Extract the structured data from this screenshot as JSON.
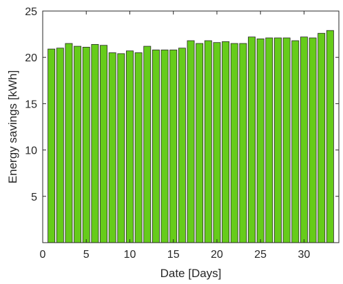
{
  "chart_data": {
    "type": "bar",
    "title": "",
    "xlabel": "Date [Days]",
    "ylabel": "Energy savings [kWh]",
    "xlim": [
      0,
      34
    ],
    "ylim": [
      0,
      25
    ],
    "xticks": [
      0,
      5,
      10,
      15,
      20,
      25,
      30
    ],
    "yticks": [
      5,
      10,
      15,
      20,
      25
    ],
    "grid": false,
    "legend": "none",
    "bar_color": "#66cc1a",
    "edge_color": "#262626",
    "x": [
      1,
      2,
      3,
      4,
      5,
      6,
      7,
      8,
      9,
      10,
      11,
      12,
      13,
      14,
      15,
      16,
      17,
      18,
      19,
      20,
      21,
      22,
      23,
      24,
      25,
      26,
      27,
      28,
      29,
      30,
      31,
      32,
      33
    ],
    "values": [
      20.9,
      21.0,
      21.5,
      21.2,
      21.1,
      21.4,
      21.3,
      20.5,
      20.4,
      20.7,
      20.5,
      21.2,
      20.8,
      20.8,
      20.8,
      21.0,
      21.8,
      21.5,
      21.8,
      21.6,
      21.7,
      21.5,
      21.5,
      22.2,
      22.0,
      22.1,
      22.1,
      22.1,
      21.8,
      22.2,
      22.1,
      22.6,
      22.9
    ]
  }
}
